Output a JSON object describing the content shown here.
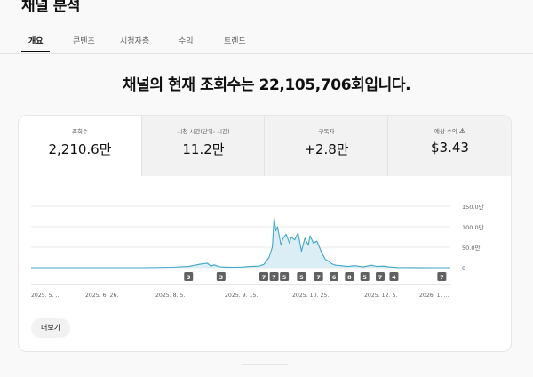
{
  "page": {
    "title": "채널 분석"
  },
  "tabs": [
    {
      "label": "개요",
      "active": true
    },
    {
      "label": "콘텐츠"
    },
    {
      "label": "시청자층"
    },
    {
      "label": "수익"
    },
    {
      "label": "트렌드"
    }
  ],
  "headline": "채널의 현재 조회수는 22,105,706회입니다.",
  "metrics": [
    {
      "label": "조회수",
      "value": "2,210.6만"
    },
    {
      "label": "시청 시간(단위: 시간)",
      "value": "11.2만"
    },
    {
      "label": "구독자",
      "value": "+2.8만"
    },
    {
      "label": "예상 수익",
      "value": "$3.43",
      "icon": "warning-icon"
    }
  ],
  "more_button": "더보기",
  "colors": {
    "line": "#3ea6c8",
    "fill": "#dbeef5",
    "marker": "#606060"
  },
  "chart_data": {
    "type": "area",
    "x_tick_labels": [
      "2025. 5. ...",
      "2025. 6. 26.",
      "2025. 8. 5.",
      "2025. 9. 15.",
      "2025. 10. 25.",
      "2025. 12. 5.",
      "2026. 1. ..."
    ],
    "y_tick_labels": [
      "150.0만",
      "100.0만",
      "50.0만",
      "0"
    ],
    "ylim": [
      0,
      1500000
    ],
    "grid": true,
    "series": [
      {
        "x": [
          "2025-05-15",
          "2025-06-01",
          "2025-06-26",
          "2025-07-20",
          "2025-08-05",
          "2025-08-15",
          "2025-08-22",
          "2025-08-26",
          "2025-08-28",
          "2025-08-30",
          "2025-09-02",
          "2025-09-05",
          "2025-09-10",
          "2025-09-15",
          "2025-09-20",
          "2025-09-25",
          "2025-09-28",
          "2025-10-01",
          "2025-10-03",
          "2025-10-04",
          "2025-10-05",
          "2025-10-06",
          "2025-10-08",
          "2025-10-09",
          "2025-10-11",
          "2025-10-13",
          "2025-10-14",
          "2025-10-16",
          "2025-10-18",
          "2025-10-20",
          "2025-10-22",
          "2025-10-24",
          "2025-10-25",
          "2025-10-27",
          "2025-10-29",
          "2025-11-01",
          "2025-11-03",
          "2025-11-05",
          "2025-11-07",
          "2025-11-09",
          "2025-11-12",
          "2025-11-16",
          "2025-11-20",
          "2025-11-25",
          "2025-11-30",
          "2025-12-03",
          "2025-12-07",
          "2025-12-10",
          "2025-12-15",
          "2025-12-25",
          "2026-01-05",
          "2026-01-15"
        ],
        "values": [
          0,
          0,
          0,
          0,
          10000,
          30000,
          90000,
          110000,
          40000,
          70000,
          25000,
          15000,
          10000,
          15000,
          30000,
          40000,
          80000,
          250000,
          500000,
          1230000,
          900000,
          1000000,
          550000,
          700000,
          820000,
          600000,
          750000,
          680000,
          850000,
          400000,
          720000,
          550000,
          780000,
          600000,
          650000,
          350000,
          200000,
          150000,
          90000,
          60000,
          50000,
          30000,
          50000,
          20000,
          60000,
          30000,
          40000,
          20000,
          5000,
          3000,
          0,
          0
        ]
      }
    ],
    "markers": [
      {
        "date": "2025-08-15",
        "label": "3"
      },
      {
        "date": "2025-09-03",
        "label": "3"
      },
      {
        "date": "2025-09-28",
        "label": "7"
      },
      {
        "date": "2025-10-04",
        "label": "7"
      },
      {
        "date": "2025-10-10",
        "label": "5"
      },
      {
        "date": "2025-10-20",
        "label": "5"
      },
      {
        "date": "2025-10-30",
        "label": "7"
      },
      {
        "date": "2025-11-08",
        "label": "6"
      },
      {
        "date": "2025-11-17",
        "label": "8"
      },
      {
        "date": "2025-11-26",
        "label": "5"
      },
      {
        "date": "2025-12-05",
        "label": "7"
      },
      {
        "date": "2025-12-13",
        "label": "4"
      },
      {
        "date": "2026-01-10",
        "label": "7"
      }
    ]
  }
}
